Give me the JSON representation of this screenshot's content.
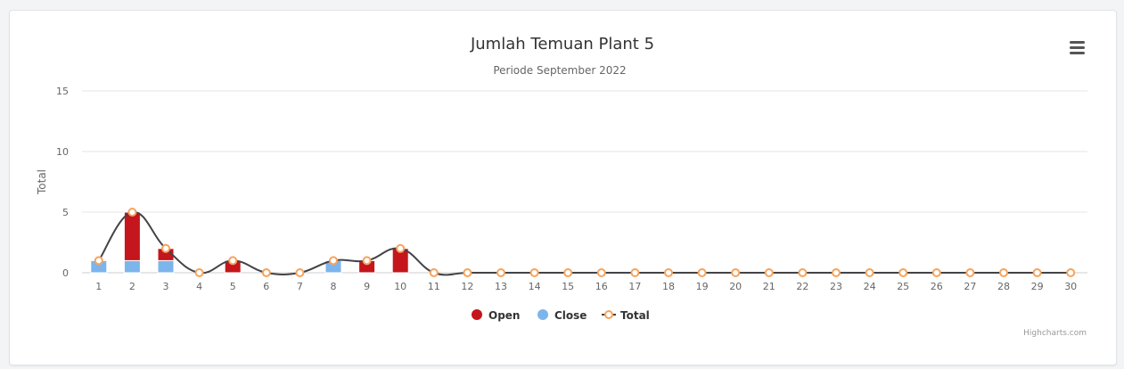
{
  "chart_data": {
    "type": "bar",
    "title": "Jumlah Temuan Plant 5",
    "subtitle": "Periode September 2022",
    "xlabel": "",
    "ylabel": "Total",
    "categories": [
      "1",
      "2",
      "3",
      "4",
      "5",
      "6",
      "7",
      "8",
      "9",
      "10",
      "11",
      "12",
      "13",
      "14",
      "15",
      "16",
      "17",
      "18",
      "19",
      "20",
      "21",
      "22",
      "23",
      "24",
      "25",
      "26",
      "27",
      "28",
      "29",
      "30"
    ],
    "ylim": [
      0,
      15
    ],
    "yticks": [
      0,
      5,
      10,
      15
    ],
    "stacked": true,
    "grid": true,
    "legend_position": "bottom-center",
    "series": [
      {
        "name": "Open",
        "type": "bar",
        "color": "#c4161c",
        "values": [
          0,
          4,
          1,
          0,
          1,
          0,
          0,
          0,
          1,
          2,
          0,
          0,
          0,
          0,
          0,
          0,
          0,
          0,
          0,
          0,
          0,
          0,
          0,
          0,
          0,
          0,
          0,
          0,
          0,
          0
        ]
      },
      {
        "name": "Close",
        "type": "bar",
        "color": "#7cb5ec",
        "values": [
          1,
          1,
          1,
          0,
          0,
          0,
          0,
          1,
          0,
          0,
          0,
          0,
          0,
          0,
          0,
          0,
          0,
          0,
          0,
          0,
          0,
          0,
          0,
          0,
          0,
          0,
          0,
          0,
          0,
          0
        ]
      },
      {
        "name": "Total",
        "type": "spline",
        "color": "#434348",
        "marker_color": "#f7a35c",
        "values": [
          1,
          5,
          2,
          0,
          1,
          0,
          0,
          1,
          1,
          2,
          0,
          0,
          0,
          0,
          0,
          0,
          0,
          0,
          0,
          0,
          0,
          0,
          0,
          0,
          0,
          0,
          0,
          0,
          0,
          0
        ]
      }
    ],
    "credits": "Highcharts.com"
  },
  "icons": {
    "menu": "hamburger-menu-icon"
  }
}
